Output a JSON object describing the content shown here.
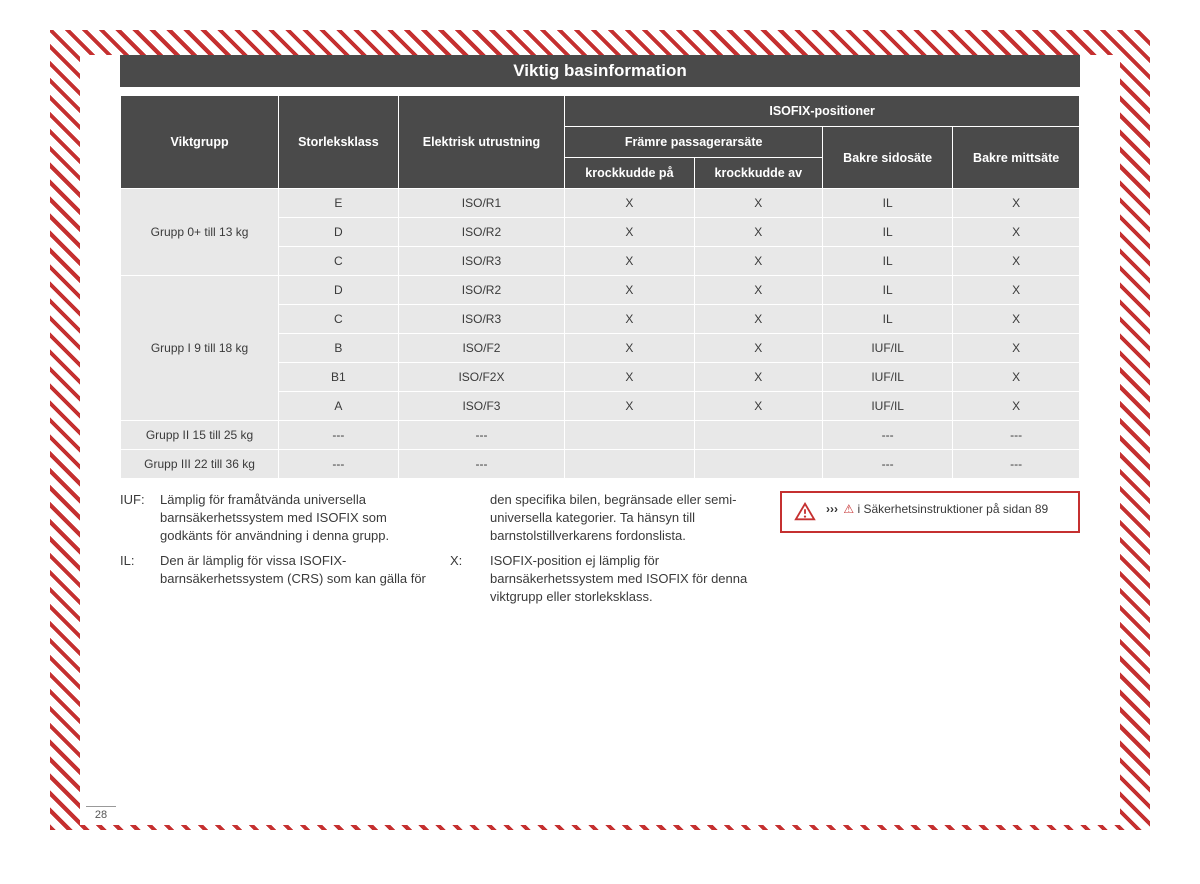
{
  "title": "Viktig basinformation",
  "columns": {
    "viktgrupp": "Viktgrupp",
    "storleksklass": "Storleksklass",
    "elektrisk": "Elektrisk utrustning",
    "isofix": "ISOFIX-positioner",
    "framre": "Främre passagerarsäte",
    "krock_pa": "krockkudde på",
    "krock_av": "krockkudde av",
    "bakre_sido": "Bakre sidosäte",
    "bakre_mitt": "Bakre mittsäte"
  },
  "groups": [
    {
      "label": "Grupp 0+ till 13 kg",
      "rows": [
        {
          "s": "E",
          "e": "ISO/R1",
          "p": "X",
          "a": "X",
          "bs": "IL",
          "bm": "X"
        },
        {
          "s": "D",
          "e": "ISO/R2",
          "p": "X",
          "a": "X",
          "bs": "IL",
          "bm": "X"
        },
        {
          "s": "C",
          "e": "ISO/R3",
          "p": "X",
          "a": "X",
          "bs": "IL",
          "bm": "X"
        }
      ]
    },
    {
      "label": "Grupp I 9 till 18 kg",
      "rows": [
        {
          "s": "D",
          "e": "ISO/R2",
          "p": "X",
          "a": "X",
          "bs": "IL",
          "bm": "X"
        },
        {
          "s": "C",
          "e": "ISO/R3",
          "p": "X",
          "a": "X",
          "bs": "IL",
          "bm": "X"
        },
        {
          "s": "B",
          "e": "ISO/F2",
          "p": "X",
          "a": "X",
          "bs": "IUF/IL",
          "bm": "X"
        },
        {
          "s": "B1",
          "e": "ISO/F2X",
          "p": "X",
          "a": "X",
          "bs": "IUF/IL",
          "bm": "X"
        },
        {
          "s": "A",
          "e": "ISO/F3",
          "p": "X",
          "a": "X",
          "bs": "IUF/IL",
          "bm": "X"
        }
      ]
    },
    {
      "label": "Grupp II 15 till 25 kg",
      "rows": [
        {
          "s": "---",
          "e": "---",
          "p": "",
          "a": "",
          "bs": "---",
          "bm": "---"
        }
      ]
    },
    {
      "label": "Grupp III 22 till 36 kg",
      "rows": [
        {
          "s": "---",
          "e": "---",
          "p": "",
          "a": "",
          "bs": "---",
          "bm": "---"
        }
      ]
    }
  ],
  "legend": {
    "iuf": {
      "key": "IUF:",
      "text": "Lämplig för framåtvända universella barnsäkerhetssystem med ISOFIX som godkänts för användning i denna grupp."
    },
    "il": {
      "key": "IL:",
      "text": "Den är lämplig för vissa ISOFIX-barnsäkerhetssystem (CRS) som kan gälla för"
    },
    "il2": "den specifika bilen, begränsade eller semi-universella kategorier. Ta hänsyn till barnstolstillverkarens fordonslista.",
    "x": {
      "key": "X:",
      "text": "ISOFIX-position ej lämplig för barnsäkerhetssystem med ISOFIX för denna viktgrupp eller storleksklass."
    }
  },
  "warning": {
    "arrows": "›››",
    "text": "i Säkerhetsinstruktioner på sidan 89"
  },
  "page_number": "28",
  "colors": {
    "header_bg": "#4a4a4a",
    "cell_bg": "#e8e8e8",
    "accent": "#c53030"
  }
}
